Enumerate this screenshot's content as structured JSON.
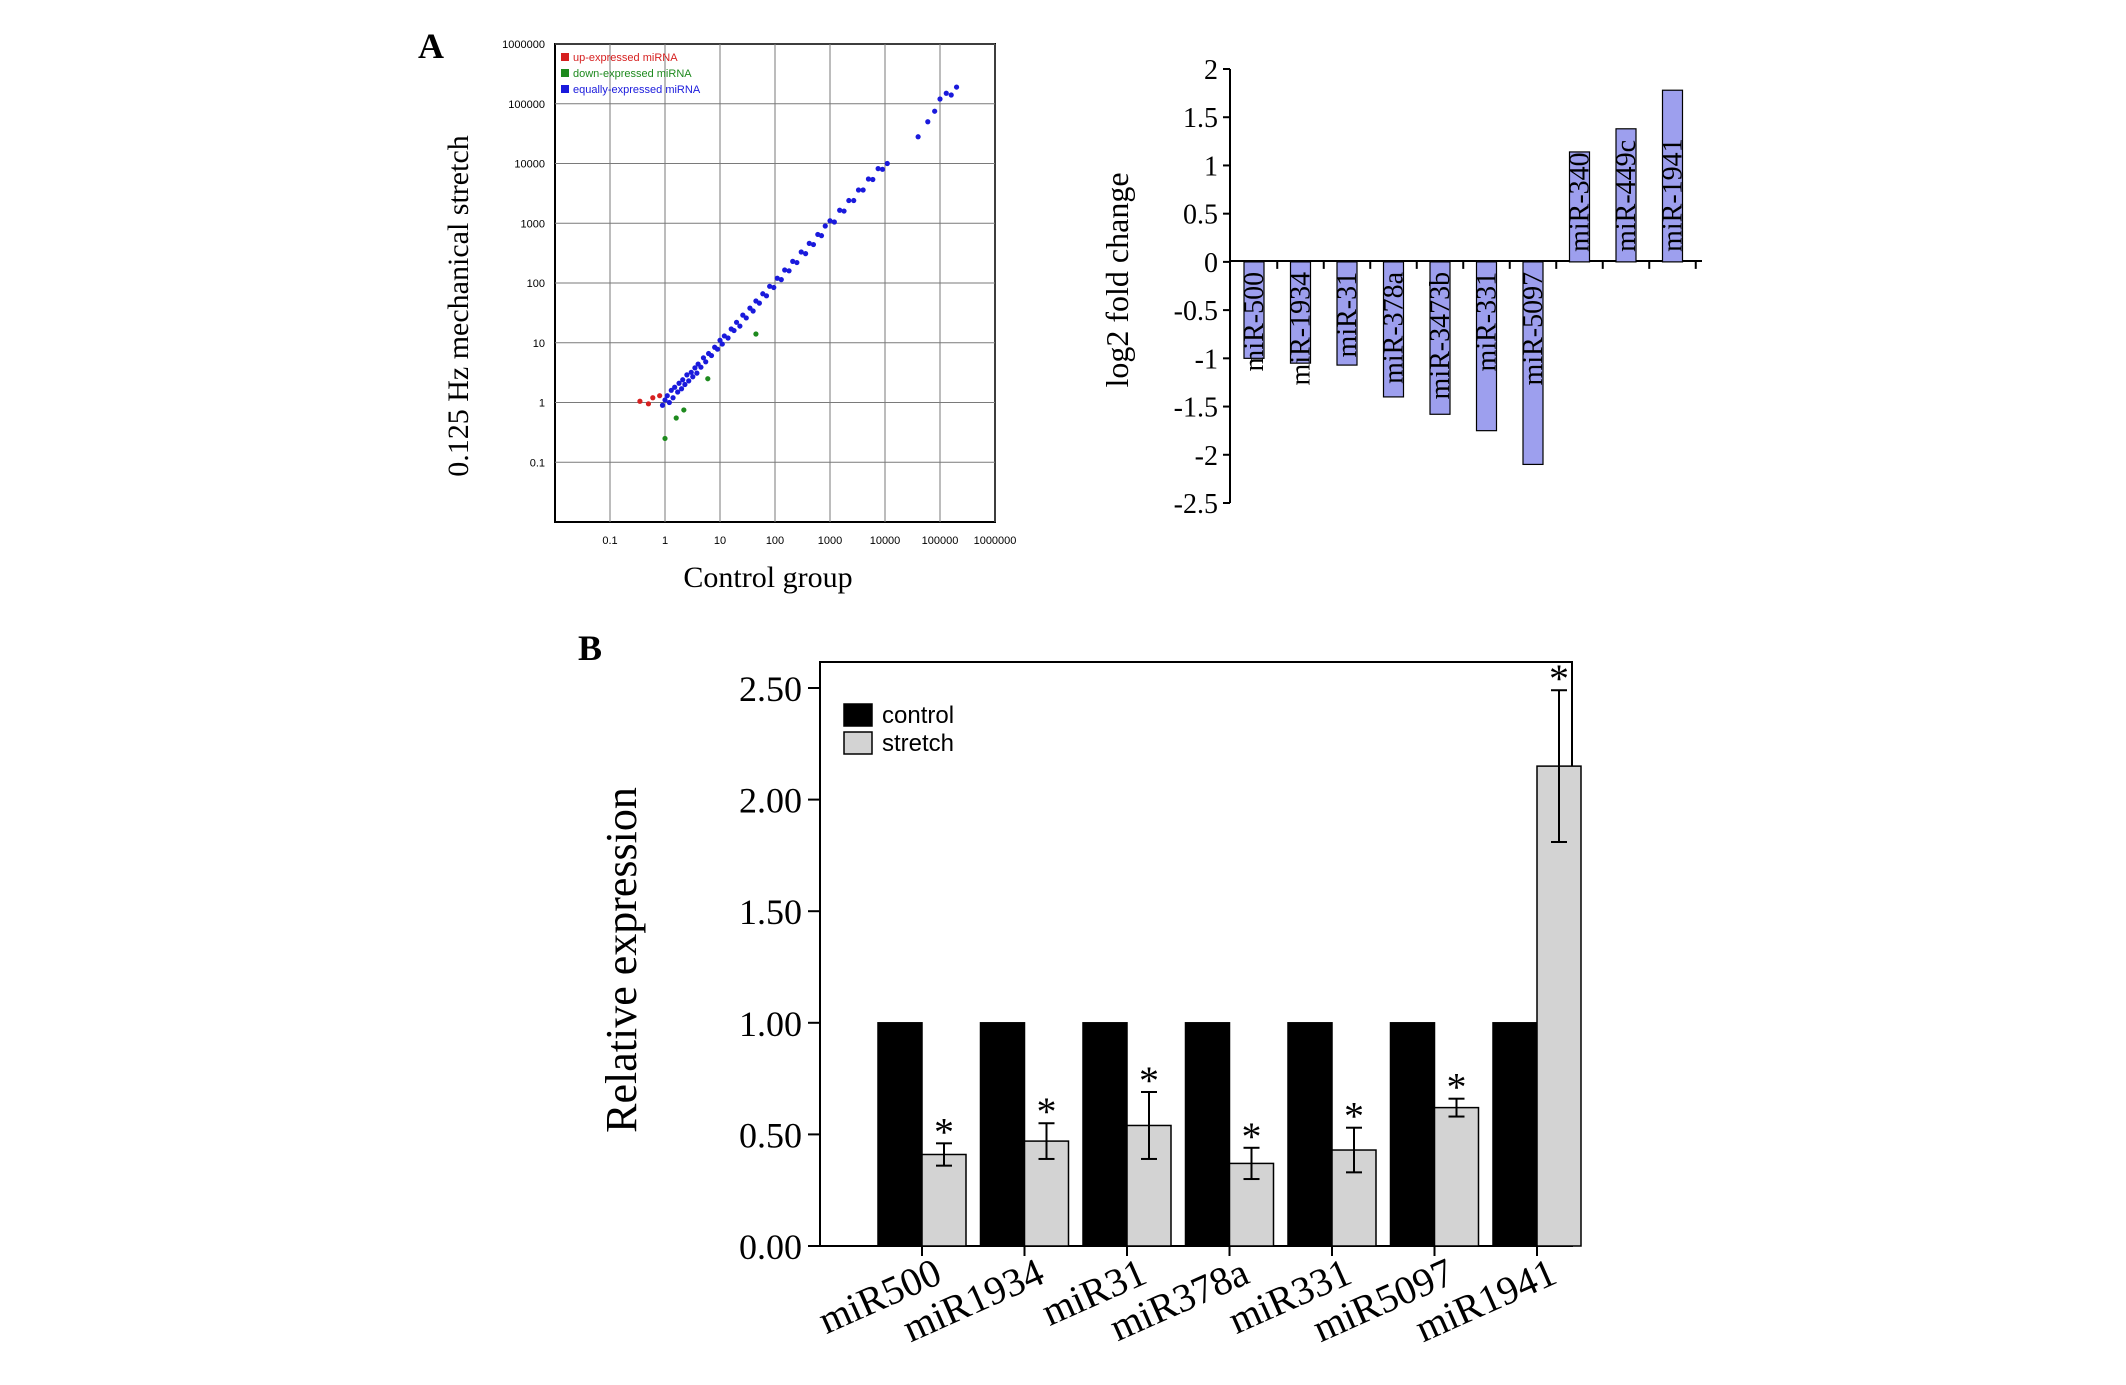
{
  "panels": {
    "a_label": "A",
    "b_label": "B"
  },
  "chart_data": [
    {
      "type": "scatter",
      "panel": "A",
      "xlabel": "Control group",
      "ylabel": "0.125 Hz mechanical stretch",
      "x_scale": "log",
      "y_scale": "log",
      "xlim": [
        0.01,
        1000000
      ],
      "ylim": [
        0.01,
        1000000
      ],
      "x_ticks": [
        0.1,
        1,
        10,
        100,
        1000,
        10000,
        100000,
        1000000
      ],
      "x_tick_labels": [
        "0.1",
        "1",
        "10",
        "100",
        "1000",
        "10000",
        "100000",
        "1000000"
      ],
      "y_ticks": [
        0.1,
        1,
        10,
        100,
        1000,
        10000,
        100000,
        1000000
      ],
      "y_tick_labels": [
        "0.1",
        "1",
        "10",
        "100",
        "1000",
        "10000",
        "100000",
        "1000000"
      ],
      "grid": true,
      "legend_position": "top-left",
      "series": [
        {
          "name": "up-expressed miRNA",
          "color": "#d62020",
          "points": [
            [
              0.35,
              1.05
            ],
            [
              0.5,
              0.95
            ],
            [
              0.6,
              1.2
            ],
            [
              0.8,
              1.3
            ]
          ]
        },
        {
          "name": "down-expressed miRNA",
          "color": "#1e8a1e",
          "points": [
            [
              1.0,
              0.25
            ],
            [
              1.6,
              0.55
            ],
            [
              2.2,
              0.75
            ],
            [
              6.0,
              2.5
            ],
            [
              45,
              14
            ]
          ]
        },
        {
          "name": "equally-expressed miRNA",
          "color": "#1a1adc",
          "points": [
            [
              0.9,
              0.9
            ],
            [
              1.0,
              1.1
            ],
            [
              1.1,
              1.3
            ],
            [
              1.2,
              1.0
            ],
            [
              1.3,
              1.6
            ],
            [
              1.4,
              1.2
            ],
            [
              1.5,
              1.8
            ],
            [
              1.7,
              1.5
            ],
            [
              1.8,
              2.1
            ],
            [
              2.0,
              1.7
            ],
            [
              2.1,
              2.4
            ],
            [
              2.3,
              2.0
            ],
            [
              2.5,
              2.9
            ],
            [
              2.7,
              2.3
            ],
            [
              3.0,
              3.2
            ],
            [
              3.2,
              2.7
            ],
            [
              3.5,
              3.8
            ],
            [
              3.8,
              3.1
            ],
            [
              4.0,
              4.4
            ],
            [
              4.5,
              3.9
            ],
            [
              5.0,
              5.6
            ],
            [
              5.5,
              4.8
            ],
            [
              6.2,
              6.6
            ],
            [
              7.0,
              6.1
            ],
            [
              8.0,
              8.4
            ],
            [
              9.0,
              7.8
            ],
            [
              10,
              11
            ],
            [
              11,
              9.5
            ],
            [
              12,
              13
            ],
            [
              14,
              12
            ],
            [
              16,
              17
            ],
            [
              18,
              16
            ],
            [
              20,
              22
            ],
            [
              23,
              19
            ],
            [
              26,
              29
            ],
            [
              30,
              26
            ],
            [
              35,
              38
            ],
            [
              40,
              34
            ],
            [
              45,
              50
            ],
            [
              52,
              46
            ],
            [
              60,
              66
            ],
            [
              70,
              61
            ],
            [
              80,
              88
            ],
            [
              95,
              84
            ],
            [
              110,
              120
            ],
            [
              130,
              114
            ],
            [
              150,
              165
            ],
            [
              180,
              160
            ],
            [
              210,
              230
            ],
            [
              250,
              220
            ],
            [
              300,
              330
            ],
            [
              360,
              310
            ],
            [
              420,
              460
            ],
            [
              500,
              440
            ],
            [
              600,
              650
            ],
            [
              700,
              620
            ],
            [
              820,
              900
            ],
            [
              1000,
              1100
            ],
            [
              1200,
              1050
            ],
            [
              1500,
              1650
            ],
            [
              1800,
              1600
            ],
            [
              2200,
              2400
            ],
            [
              2700,
              2400
            ],
            [
              3300,
              3600
            ],
            [
              4000,
              3600
            ],
            [
              5000,
              5500
            ],
            [
              6000,
              5400
            ],
            [
              7500,
              8200
            ],
            [
              9000,
              8000
            ],
            [
              11000,
              10000
            ],
            [
              40000,
              28000
            ],
            [
              60000,
              50000
            ],
            [
              80000,
              75000
            ],
            [
              100000,
              120000
            ],
            [
              130000,
              150000
            ],
            [
              160000,
              140000
            ],
            [
              200000,
              190000
            ]
          ]
        }
      ]
    },
    {
      "type": "bar",
      "panel": "A",
      "ylabel": "log2 fold change",
      "ylim": [
        -2.5,
        2
      ],
      "y_ticks": [
        -2.5,
        -2,
        -1.5,
        -1,
        -0.5,
        0,
        0.5,
        1,
        1.5,
        2
      ],
      "y_tick_labels": [
        "-2.5",
        "-2",
        "-1.5",
        "-1",
        "-0.5",
        "0",
        "0.5",
        "1",
        "1.5",
        "2"
      ],
      "bar_color": "#9d9fee",
      "categories": [
        "miR-500",
        "miR-1934",
        "miR-31",
        "miR-378a",
        "miR-3473b",
        "miR-331",
        "miR-5097",
        "miR-340",
        "miR-449c",
        "miR-1941"
      ],
      "values": [
        -1.0,
        -1.05,
        -1.07,
        -1.4,
        -1.58,
        -1.75,
        -2.1,
        1.14,
        1.38,
        1.78
      ]
    },
    {
      "type": "bar",
      "panel": "B",
      "ylabel": "Relative expression",
      "ylim": [
        0,
        2.5
      ],
      "y_ticks": [
        0,
        0.5,
        1,
        1.5,
        2,
        2.5
      ],
      "y_tick_labels": [
        "0.00",
        "0.50",
        "1.00",
        "1.50",
        "2.00",
        "2.50"
      ],
      "legend_position": "top-left",
      "categories": [
        "miR500",
        "miR1934",
        "miR31",
        "miR378a",
        "miR331",
        "miR5097",
        "miR1941"
      ],
      "series": [
        {
          "name": "control",
          "color": "#000000",
          "values": [
            1,
            1,
            1,
            1,
            1,
            1,
            1
          ]
        },
        {
          "name": "stretch",
          "color": "#d3d3d3",
          "values": [
            0.41,
            0.47,
            0.54,
            0.37,
            0.43,
            0.62,
            2.15
          ],
          "error": [
            0.05,
            0.08,
            0.15,
            0.07,
            0.1,
            0.04,
            0.34
          ]
        }
      ],
      "significance_marker": "*",
      "significant": [
        true,
        true,
        true,
        true,
        true,
        true,
        true
      ]
    }
  ]
}
